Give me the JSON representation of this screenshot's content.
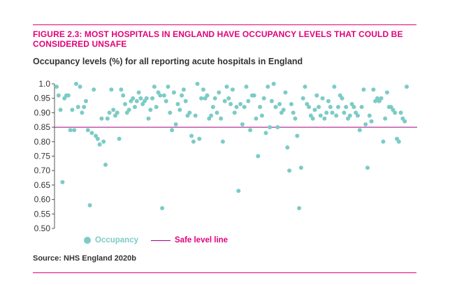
{
  "figure": {
    "title": "FIGURE 2.3: MOST HOSPITALS IN ENGLAND HAVE OCCUPANCY LEVELS THAT COULD BE CONSIDERED UNSAFE",
    "subtitle": "Occupancy levels (%) for all reporting acute hospitals in England",
    "source": "Source: NHS England 2020b"
  },
  "colors": {
    "accent": "#e2007a",
    "points": "#7ccbc6",
    "safe_line": "#a3007d"
  },
  "chart_data": {
    "type": "scatter",
    "title": "",
    "xlabel": "",
    "ylabel": "",
    "ylim": [
      0.5,
      1.0
    ],
    "yticks": [
      "1.0",
      "0.95",
      "0.90",
      "0.85",
      "0.80",
      "0.75",
      "0.70",
      "0.65",
      "0.60",
      "0.55",
      "0.50"
    ],
    "safe_level": 0.85,
    "legend": {
      "position": "bottom-left",
      "occupancy": "Occupancy",
      "safe": "Safe level line"
    },
    "series": [
      {
        "name": "Occupancy",
        "values": [
          0.99,
          0.96,
          0.91,
          0.66,
          0.95,
          0.96,
          0.96,
          0.84,
          0.91,
          0.84,
          1.0,
          0.92,
          0.99,
          0.9,
          0.92,
          0.94,
          0.84,
          0.58,
          0.83,
          0.98,
          0.82,
          0.81,
          0.79,
          0.88,
          0.8,
          0.72,
          0.88,
          0.9,
          0.98,
          0.91,
          0.89,
          0.9,
          0.81,
          0.98,
          0.96,
          0.93,
          0.9,
          0.91,
          0.94,
          0.95,
          0.92,
          0.94,
          0.97,
          0.95,
          0.93,
          0.94,
          0.95,
          0.88,
          0.91,
          0.95,
          0.99,
          0.92,
          0.97,
          0.96,
          0.57,
          0.96,
          0.94,
          0.99,
          0.9,
          0.84,
          0.97,
          0.86,
          0.93,
          0.91,
          0.96,
          0.98,
          0.94,
          0.89,
          0.9,
          0.82,
          0.8,
          0.89,
          1.0,
          0.81,
          0.95,
          0.98,
          0.95,
          0.96,
          0.88,
          0.89,
          0.92,
          0.95,
          0.9,
          0.97,
          0.88,
          0.8,
          0.94,
          0.99,
          0.95,
          0.93,
          0.98,
          0.9,
          0.92,
          0.63,
          0.93,
          0.86,
          0.92,
          0.99,
          0.94,
          0.84,
          0.96,
          0.96,
          0.88,
          0.75,
          0.92,
          0.89,
          0.95,
          0.83,
          0.99,
          0.85,
          0.94,
          1.0,
          0.92,
          0.85,
          0.93,
          0.9,
          0.91,
          0.97,
          0.78,
          0.7,
          0.93,
          0.9,
          0.88,
          0.82,
          0.57,
          0.71,
          0.95,
          0.99,
          0.93,
          0.92,
          0.89,
          0.88,
          0.91,
          0.96,
          0.92,
          0.89,
          0.95,
          0.88,
          0.9,
          0.94,
          0.92,
          0.9,
          0.99,
          0.89,
          0.92,
          0.96,
          0.95,
          0.9,
          0.92,
          0.88,
          0.89,
          0.93,
          0.92,
          0.9,
          0.89,
          0.84,
          0.92,
          0.98,
          0.86,
          0.71,
          0.89,
          0.87,
          0.98,
          0.94,
          0.95,
          0.94,
          0.95,
          0.8,
          0.88,
          0.97,
          0.92,
          0.92,
          0.91,
          0.9,
          0.81,
          0.8,
          0.9,
          0.88,
          0.87,
          0.99
        ]
      }
    ]
  }
}
